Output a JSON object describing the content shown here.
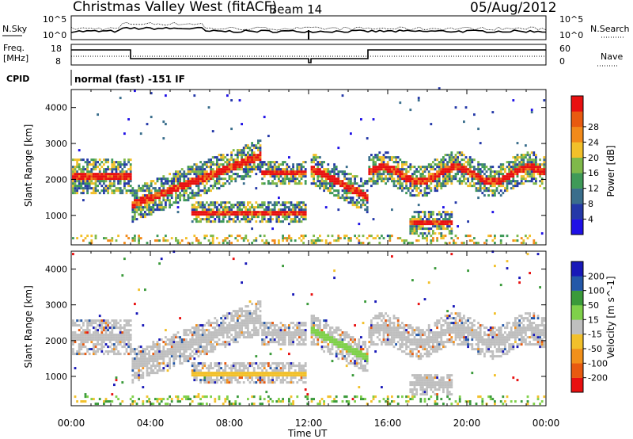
{
  "header": {
    "title": "Christmas Valley West (fitACF)",
    "beam": "Beam 14",
    "date": "05/Aug/2012"
  },
  "top_panels": {
    "nsky_label": "N.Sky",
    "nsky_ticks": [
      "10^5",
      "10^0"
    ],
    "nsearch_label": "N.Search",
    "nsearch_ticks": [
      "10^5",
      "10^0"
    ],
    "freq_label_line1": "Freq.",
    "freq_label_line2": "[MHz]",
    "freq_ticks": [
      "18",
      "8"
    ],
    "nave_label": "Nave",
    "nave_ticks": [
      "60",
      "0"
    ],
    "cpid_label": "CPID",
    "cpid_text": "normal (fast) -151 IF"
  },
  "chart_data": [
    {
      "type": "heatmap",
      "name": "power",
      "ylabel": "Slant Range [km]",
      "yticks": [
        "1000",
        "2000",
        "3000",
        "4000"
      ],
      "ylim": [
        180,
        4500
      ],
      "xlim": [
        0,
        24
      ],
      "xticks": [
        "00:00",
        "04:00",
        "08:00",
        "12:00",
        "16:00",
        "20:00",
        "00:00"
      ],
      "colorbar": {
        "label": "Power [dB]",
        "ticks": [
          "4",
          "8",
          "12",
          "16",
          "20",
          "24",
          "28"
        ],
        "colors": [
          "#1f10e6",
          "#2438a8",
          "#3a6e8c",
          "#3f9a58",
          "#7fb94a",
          "#f2c02a",
          "#f28a1a",
          "#e85a10",
          "#e81010"
        ]
      },
      "bands": [
        {
          "t": [
            0,
            3
          ],
          "r": [
            1850,
            2500
          ],
          "level": "high"
        },
        {
          "t": [
            4,
            9.5
          ],
          "r": [
            1100,
            2700
          ],
          "level": "high"
        },
        {
          "t": [
            6,
            11.7
          ],
          "r": [
            750,
            1250
          ],
          "level": "high"
        },
        {
          "t": [
            12,
            15
          ],
          "r": [
            1300,
            2500
          ],
          "level": "high"
        },
        {
          "t": [
            15,
            24
          ],
          "r": [
            1800,
            2800
          ],
          "level": "high"
        },
        {
          "t": [
            17,
            19
          ],
          "r": [
            450,
            900
          ],
          "level": "high"
        }
      ]
    },
    {
      "type": "heatmap",
      "name": "velocity",
      "ylabel": "Slant Range [km]",
      "yticks": [
        "1000",
        "2000",
        "3000",
        "4000"
      ],
      "ylim": [
        180,
        4500
      ],
      "xlim": [
        0,
        24
      ],
      "xticks": [
        "00:00",
        "04:00",
        "08:00",
        "12:00",
        "16:00",
        "20:00",
        "00:00"
      ],
      "xlabel": "Time UT",
      "colorbar": {
        "label": "Velocity [m s^-1]",
        "ticks": [
          "200",
          "100",
          "50",
          "15",
          "-15",
          "-50",
          "-100",
          "-200"
        ],
        "colors": [
          "#1818b8",
          "#2458a8",
          "#3a9a3a",
          "#7fd04a",
          "#bfbfbf",
          "#f2c02a",
          "#f2901a",
          "#e85a10",
          "#e81010"
        ]
      }
    }
  ]
}
